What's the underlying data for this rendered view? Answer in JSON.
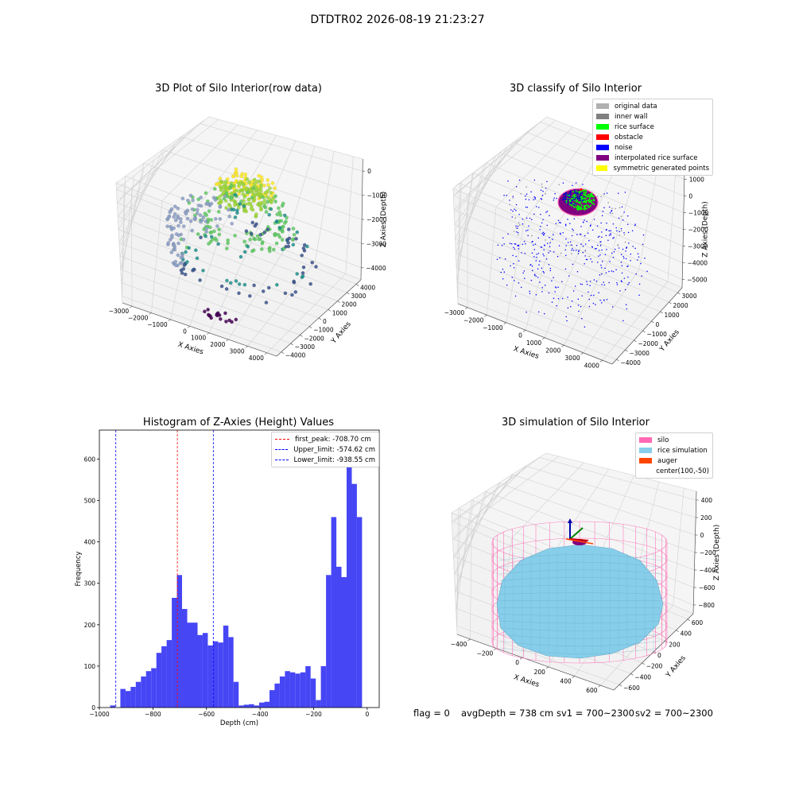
{
  "suptitle": "DTDTR02 2026-08-19 21:23:27",
  "colors": {
    "histogram_bar": "#4646f5",
    "first_peak_line": "#ff0000",
    "limit_line": "#0000ff",
    "silo": "#ff69b4",
    "rice_simulation": "#87ceeb",
    "auger": "#ff4500",
    "original_data": "#b0b0b0",
    "inner_wall": "#808080",
    "rice_surface": "#00ff00",
    "obstacle": "#ff0000",
    "noise": "#0000ff",
    "interpolated_rice_surface": "#800080",
    "symmetric_generated_points": "#ffff00"
  },
  "status": {
    "flag": "flag = 0",
    "avg_depth": "avgDepth = 738 cm",
    "sv1": "sv1 = 700~2300",
    "sv2": "sv2 = 700~2300"
  },
  "chart_data": [
    {
      "type": "scatter",
      "title": "3D Plot of Silo Interior(row data)",
      "xlabel": "X Axies",
      "ylabel": "Y Axies",
      "zlabel": "Z Axies (Depth)",
      "x_ticks": [
        "−3000",
        "−2000",
        "−1000",
        "0",
        "1000",
        "2000",
        "3000",
        "4000"
      ],
      "y_ticks": [
        "−4000",
        "−3000",
        "−2000",
        "−1000",
        "0",
        "1000",
        "2000",
        "3000",
        "4000"
      ],
      "z_ticks": [
        "0",
        "−1000",
        "−2000",
        "−3000",
        "−4000"
      ],
      "xlim": [
        -3500,
        4000
      ],
      "ylim": [
        -4000,
        4000
      ],
      "zlim": [
        -4500,
        200
      ],
      "grid": true
    },
    {
      "type": "scatter",
      "title": "3D classify of Silo Interior",
      "xlabel": "X Axies",
      "ylabel": "Y Axies",
      "zlabel": "Z Axies (Depth)",
      "x_ticks": [
        "−3000",
        "−2000",
        "−1000",
        "0",
        "1000",
        "2000",
        "3000",
        "4000"
      ],
      "y_ticks": [
        "−4000",
        "−3000",
        "−2000",
        "−1000",
        "0",
        "1000",
        "2000",
        "3000"
      ],
      "z_ticks": [
        "1000",
        "0",
        "−1000",
        "−2000",
        "−3000",
        "−4000",
        "−5000"
      ],
      "xlim": [
        -3500,
        4000
      ],
      "ylim": [
        -4000,
        3500
      ],
      "zlim": [
        -5500,
        1000
      ],
      "grid": true,
      "legend_position": "top-right",
      "legend": [
        "original data",
        "inner wall",
        "rice surface",
        "obstacle",
        "noise",
        "interpolated rice surface",
        "symmetric generated points"
      ]
    },
    {
      "type": "bar",
      "title": "Histogram of Z-Axies (Height) Values",
      "xlabel": "Depth (cm)",
      "ylabel": "Frequency",
      "xlim": [
        -1000,
        45
      ],
      "ylim": [
        0,
        670
      ],
      "x_ticks": [
        "−1000",
        "−800",
        "−600",
        "−400",
        "−200",
        "0"
      ],
      "y_ticks": [
        "0",
        "100",
        "200",
        "300",
        "400",
        "500",
        "600"
      ],
      "bin_start": -960,
      "bin_width": 19.2,
      "values": [
        5,
        0,
        45,
        40,
        50,
        62,
        75,
        88,
        95,
        132,
        148,
        163,
        265,
        320,
        238,
        205,
        205,
        175,
        180,
        150,
        160,
        157,
        198,
        170,
        62,
        5,
        7,
        8,
        5,
        12,
        14,
        42,
        58,
        75,
        88,
        85,
        82,
        85,
        100,
        70,
        18,
        100,
        320,
        460,
        340,
        315,
        640,
        540,
        460
      ],
      "vlines": [
        {
          "name": "first_peak: -708.70 cm",
          "x": -708.7
        },
        {
          "name": "Upper_limit: -574.62 cm",
          "x": -574.62
        },
        {
          "name": "Lower_limit: -938.55 cm",
          "x": -938.55
        }
      ],
      "legend_position": "top-right"
    },
    {
      "type": "scatter",
      "title": "3D simulation of Silo Interior",
      "xlabel": "X Axies",
      "ylabel": "Y Axies",
      "zlabel": "Z Axies (Depth)",
      "x_ticks": [
        "−400",
        "−200",
        "0",
        "200",
        "400",
        "600"
      ],
      "y_ticks": [
        "−600",
        "−400",
        "−200",
        "0",
        "200",
        "400",
        "600"
      ],
      "z_ticks": [
        "400",
        "200",
        "0",
        "−200",
        "−400",
        "−600",
        "−800"
      ],
      "xlim": [
        -500,
        750
      ],
      "ylim": [
        -700,
        650
      ],
      "zlim": [
        -900,
        450
      ],
      "grid": true,
      "legend_position": "top-right",
      "legend": [
        "silo",
        "rice simulation",
        "auger",
        "center(100,-50)"
      ]
    }
  ]
}
